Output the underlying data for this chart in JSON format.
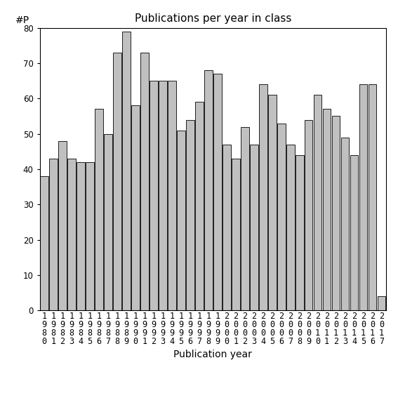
{
  "title": "Publications per year in class",
  "xlabel": "Publication year",
  "ylabel": "#P",
  "years": [
    1980,
    1981,
    1982,
    1983,
    1984,
    1985,
    1986,
    1987,
    1988,
    1989,
    1990,
    1991,
    1992,
    1993,
    1994,
    1995,
    1996,
    1997,
    1998,
    1999,
    2000,
    2001,
    2002,
    2003,
    2004,
    2005,
    2006,
    2007,
    2008,
    2009,
    2010,
    2011,
    2012,
    2013,
    2014,
    2015,
    2016,
    2017
  ],
  "values": [
    38,
    43,
    48,
    43,
    42,
    42,
    57,
    50,
    73,
    79,
    58,
    73,
    65,
    65,
    65,
    51,
    54,
    59,
    68,
    67,
    47,
    43,
    52,
    47,
    64,
    61,
    53,
    47,
    44,
    54,
    61,
    57,
    55,
    49,
    44,
    64,
    64,
    4
  ],
  "bar_color": "#c0c0c0",
  "bar_edge_color": "#000000",
  "ylim": [
    0,
    80
  ],
  "yticks": [
    0,
    10,
    20,
    30,
    40,
    50,
    60,
    70,
    80
  ],
  "background_color": "#ffffff",
  "title_fontsize": 11,
  "axis_label_fontsize": 10,
  "tick_fontsize": 8.5
}
